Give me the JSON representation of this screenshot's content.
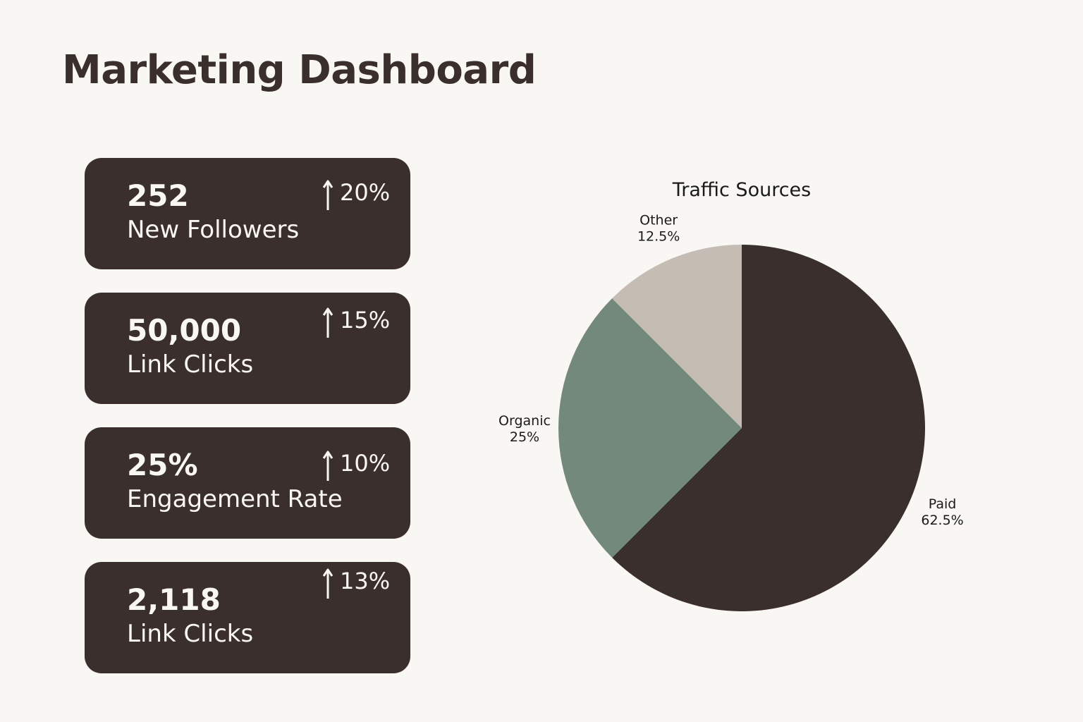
{
  "header": {
    "title": "Marketing Dashboard"
  },
  "cards": [
    {
      "value": "252",
      "label": "New Followers",
      "delta": "20%"
    },
    {
      "value": "50,000",
      "label": "Link Clicks",
      "delta": "15%"
    },
    {
      "value": "25%",
      "label": "Engagement Rate",
      "delta": "10%"
    },
    {
      "value": "2,118",
      "label": "Link Clicks",
      "delta": "13%"
    }
  ],
  "icons": {
    "trend": "arrow-up-icon"
  },
  "colors": {
    "background": "#f9f7f3",
    "card": "#3a2f2c",
    "card_text": "#f9f7f3",
    "paid": "#3a2f2c",
    "organic": "#73897c",
    "other": "#c5bcb3"
  },
  "chart_data": {
    "type": "pie",
    "title": "Traffic Sources",
    "categories": [
      "Paid",
      "Organic",
      "Other"
    ],
    "values": [
      62.5,
      25,
      12.5
    ],
    "value_labels": [
      "62.5%",
      "25%",
      "12.5%"
    ],
    "colors": [
      "#3a2f2c",
      "#73897c",
      "#c5bcb3"
    ],
    "start_angle": "12 o'clock",
    "direction": "clockwise"
  }
}
